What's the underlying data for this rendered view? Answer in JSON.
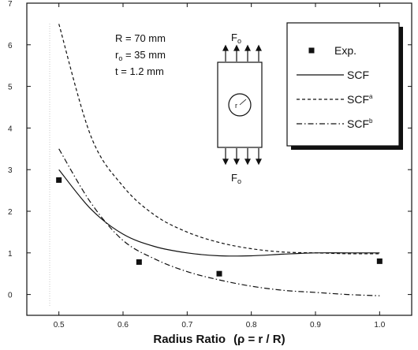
{
  "chart_data": {
    "type": "line",
    "xlabel_main": "Radius Ratio",
    "xlabel_paren": "(ρ = r / R)",
    "ylabel": "",
    "xlim": [
      0.45,
      1.05
    ],
    "ylim": [
      -0.5,
      7
    ],
    "x_ticks": [
      0.5,
      0.6,
      0.7,
      0.8,
      0.9,
      1.0
    ],
    "x_tick_labels": [
      "0.5",
      "0.6",
      "0.7",
      "0.8",
      "0.9",
      "1.0"
    ],
    "y_ticks": [
      0,
      1,
      2,
      3,
      4,
      5,
      6,
      7
    ],
    "y_tick_labels": [
      "0",
      "1",
      "2",
      "3",
      "4",
      "5",
      "6",
      "7"
    ],
    "grid": false,
    "legend_position": "top-right",
    "series": [
      {
        "name": "Exp.",
        "style": "marker-square",
        "x": [
          0.5,
          0.625,
          0.75,
          1.0
        ],
        "y": [
          2.75,
          0.78,
          0.5,
          0.8
        ]
      },
      {
        "name": "SCF",
        "style": "solid",
        "x": [
          0.5,
          0.55,
          0.6,
          0.65,
          0.7,
          0.75,
          0.8,
          0.85,
          0.9,
          0.95,
          1.0
        ],
        "y": [
          3.0,
          2.05,
          1.45,
          1.15,
          1.0,
          0.93,
          0.93,
          0.97,
          1.0,
          1.0,
          1.0
        ]
      },
      {
        "name": "SCF",
        "sup": "a",
        "style": "dashed",
        "x": [
          0.5,
          0.55,
          0.6,
          0.65,
          0.7,
          0.75,
          0.8,
          0.85,
          0.9,
          0.95,
          1.0
        ],
        "y": [
          6.5,
          3.8,
          2.6,
          1.9,
          1.5,
          1.25,
          1.1,
          1.02,
          1.0,
          0.98,
          0.98
        ]
      },
      {
        "name": "SCF",
        "sup": "b",
        "style": "dashdot",
        "x": [
          0.5,
          0.55,
          0.6,
          0.65,
          0.7,
          0.75,
          0.8,
          0.85,
          0.9,
          0.95,
          1.0
        ],
        "y": [
          3.5,
          2.2,
          1.3,
          0.85,
          0.55,
          0.35,
          0.2,
          0.1,
          0.05,
          0.0,
          -0.03
        ]
      }
    ],
    "annotations": {
      "R": {
        "prefix": "R = ",
        "value": "70 mm"
      },
      "r0": {
        "prefix": "r",
        "sub": "o",
        "rest": " = 35 mm"
      },
      "t": {
        "prefix": "t = ",
        "value": "1.2 mm"
      },
      "force_top": {
        "main": "F",
        "sub": "o"
      },
      "force_bottom": {
        "main": "F",
        "sub": "o"
      }
    }
  }
}
